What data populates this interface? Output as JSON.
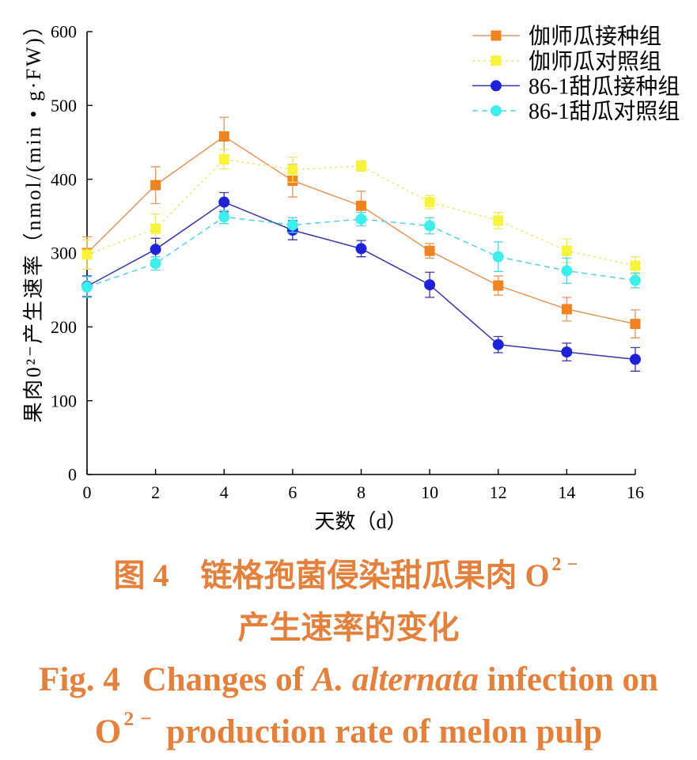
{
  "chart_data": {
    "type": "line",
    "xlabel": "天数（d）",
    "ylabel": "果肉0²⁻产生速率（nmol/(min • g·FW)）",
    "x": [
      0,
      2,
      4,
      6,
      8,
      10,
      12,
      14,
      16
    ],
    "x_ticks": [
      "0",
      "2",
      "4",
      "6",
      "8",
      "10",
      "12",
      "14",
      "16"
    ],
    "y_ticks": [
      "0",
      "100",
      "200",
      "300",
      "400",
      "500",
      "600"
    ],
    "xlim": [
      0,
      16
    ],
    "ylim": [
      0,
      600
    ],
    "grid": false,
    "error_bars": true,
    "legend_position": "top-right",
    "series": [
      {
        "name": "伽师瓜接种组",
        "marker": "square",
        "line_style": "solid",
        "marker_color": "#F08220",
        "line_color": "#E8955A",
        "values": [
          300,
          392,
          458,
          398,
          364,
          303,
          256,
          224,
          204
        ],
        "errors": [
          22,
          25,
          26,
          22,
          20,
          10,
          13,
          16,
          19
        ]
      },
      {
        "name": "伽师瓜对照组",
        "marker": "square",
        "line_style": "dotted",
        "marker_color": "#F7F23A",
        "line_color": "#EDE86A",
        "values": [
          298,
          333,
          427,
          413,
          418,
          369,
          344,
          303,
          283
        ],
        "errors": [
          20,
          20,
          13,
          17,
          7,
          9,
          11,
          16,
          12
        ]
      },
      {
        "name": "86-1甜瓜接种组",
        "marker": "circle",
        "line_style": "solid",
        "marker_color": "#1E22D6",
        "line_color": "#3434A8",
        "values": [
          255,
          305,
          369,
          331,
          306,
          257,
          176,
          166,
          156
        ],
        "errors": [
          14,
          15,
          13,
          13,
          11,
          17,
          11,
          12,
          16
        ]
      },
      {
        "name": "86-1甜瓜对照组",
        "marker": "circle",
        "line_style": "dashed",
        "marker_color": "#3EEDED",
        "line_color": "#4FD4E4",
        "values": [
          254,
          286,
          349,
          338,
          346,
          337,
          295,
          276,
          263
        ],
        "errors": [
          14,
          9,
          9,
          10,
          9,
          11,
          20,
          17,
          10
        ]
      }
    ]
  },
  "caption": {
    "color": "#E2803C",
    "cn": {
      "figure_number": "图 4",
      "line1_text": "链格孢菌侵染甜瓜果肉 O",
      "line1_superscript": "2−",
      "line2_text": "产生速率的变化"
    },
    "en": {
      "figure_number": "Fig. 4",
      "line1_before_italic": "Changes of ",
      "line1_italic": "A. alternata",
      "line1_after_italic": " infection on",
      "line2_prefix": "O",
      "line2_superscript": "2−",
      "line2_text": " production rate of melon pulp"
    }
  }
}
